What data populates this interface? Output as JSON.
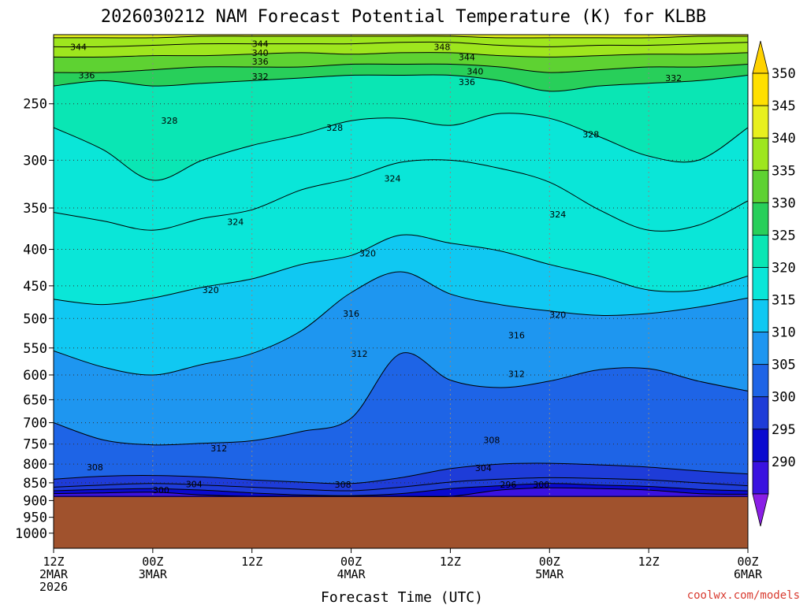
{
  "chart_data": {
    "type": "heatmap",
    "title": "2026030212 NAM Forecast Potential Temperature (K) for KLBB",
    "xlabel": "Forecast Time (UTC)",
    "credit": "coolwx.com/models",
    "y_axis": {
      "scale": "log-pressure",
      "reversed": true,
      "range": [
        200,
        1050
      ],
      "ticks": [
        250,
        300,
        350,
        400,
        450,
        500,
        550,
        600,
        650,
        700,
        750,
        800,
        850,
        900,
        950,
        1000
      ],
      "tick_labels": [
        "250",
        "300",
        "350",
        "400",
        "450",
        "500",
        "550",
        "600",
        "650",
        "700",
        "750",
        "800",
        "850",
        "900",
        "950",
        "1000"
      ]
    },
    "x_axis": {
      "range_hours": [
        0,
        84
      ],
      "ticks_hours": [
        0,
        12,
        24,
        36,
        48,
        60,
        72,
        84
      ],
      "tick_labels": [
        [
          "12Z",
          "2MAR",
          "2026"
        ],
        [
          "00Z",
          "3MAR"
        ],
        [
          "12Z"
        ],
        [
          "00Z",
          "4MAR"
        ],
        [
          "12Z"
        ],
        [
          "00Z",
          "5MAR"
        ],
        [
          "12Z"
        ],
        [
          "00Z",
          "6MAR"
        ]
      ]
    },
    "colorbar": {
      "levels": [
        290,
        295,
        300,
        305,
        310,
        315,
        320,
        325,
        330,
        335,
        340,
        345,
        350
      ],
      "labels": [
        "290",
        "295",
        "300",
        "305",
        "310",
        "315",
        "320",
        "325",
        "330",
        "335",
        "340",
        "345",
        "350"
      ],
      "colors": [
        "#8a1ee6",
        "#3a12e0",
        "#0a0ad0",
        "#1e3cd8",
        "#1e64e6",
        "#1e96f0",
        "#10c8f2",
        "#0ae6d8",
        "#0ae6b4",
        "#28cf5a",
        "#5ed232",
        "#9ee61e",
        "#e8f01e",
        "#ffe000",
        "#ffd200"
      ]
    },
    "grid": true,
    "terrain_pressure": 890,
    "terrain_color": "#a0522d",
    "isentropes": [
      {
        "theta": 290,
        "p": [
          888,
          888,
          888,
          888,
          888,
          888,
          888,
          888,
          888,
          888,
          888,
          888,
          888,
          888,
          888
        ]
      },
      {
        "theta": 296,
        "p": [
          880,
          878,
          876,
          884,
          888,
          888,
          888,
          888,
          888,
          870,
          864,
          866,
          870,
          880,
          882
        ]
      },
      {
        "theta": 300,
        "p": [
          872,
          868,
          866,
          870,
          878,
          884,
          886,
          880,
          866,
          858,
          852,
          856,
          860,
          868,
          872
        ]
      },
      {
        "theta": 304,
        "p": [
          862,
          856,
          852,
          856,
          862,
          868,
          872,
          862,
          848,
          840,
          836,
          838,
          842,
          850,
          858
        ]
      },
      {
        "theta": 308,
        "p": [
          840,
          832,
          830,
          834,
          842,
          848,
          852,
          836,
          812,
          800,
          798,
          802,
          808,
          818,
          826
        ]
      },
      {
        "theta": 312,
        "p": [
          700,
          740,
          752,
          748,
          742,
          720,
          690,
          560,
          610,
          625,
          612,
          590,
          588,
          612,
          632
        ]
      },
      {
        "theta": 316,
        "p": [
          555,
          585,
          600,
          580,
          560,
          520,
          460,
          430,
          462,
          478,
          488,
          495,
          492,
          482,
          468
        ]
      },
      {
        "theta": 320,
        "p": [
          470,
          478,
          468,
          452,
          440,
          420,
          408,
          382,
          392,
          402,
          420,
          436,
          456,
          456,
          436
        ]
      },
      {
        "theta": 324,
        "p": [
          355,
          365,
          376,
          362,
          352,
          330,
          318,
          302,
          300,
          308,
          322,
          352,
          376,
          370,
          342
        ]
      },
      {
        "theta": 328,
        "p": [
          270,
          290,
          320,
          300,
          286,
          276,
          264,
          262,
          268,
          258,
          262,
          278,
          296,
          300,
          270
        ]
      },
      {
        "theta": 332,
        "p": [
          236,
          232,
          236,
          234,
          232,
          230,
          228,
          228,
          228,
          232,
          240,
          236,
          234,
          232,
          228
        ]
      },
      {
        "theta": 336,
        "p": [
          226,
          226,
          224,
          222,
          222,
          222,
          220,
          220,
          220,
          222,
          226,
          224,
          222,
          222,
          220
        ]
      },
      {
        "theta": 340,
        "p": [
          215,
          215,
          214,
          214,
          213,
          212,
          213,
          212,
          212,
          214,
          215,
          214,
          213,
          213,
          212
        ]
      },
      {
        "theta": 344,
        "p": [
          208,
          208,
          207,
          206,
          206,
          206,
          206,
          205,
          205,
          207,
          208,
          207,
          207,
          206,
          205
        ]
      },
      {
        "theta": 348,
        "p": [
          202,
          202,
          202,
          201,
          201,
          201,
          201,
          201,
          201,
          202,
          202,
          202,
          202,
          201,
          201
        ]
      }
    ],
    "contour_labels": [
      {
        "text": "344",
        "hour": 3,
        "p": 208
      },
      {
        "text": "344",
        "hour": 25,
        "p": 206
      },
      {
        "text": "340",
        "hour": 25,
        "p": 212
      },
      {
        "text": "336",
        "hour": 25,
        "p": 218
      },
      {
        "text": "332",
        "hour": 25,
        "p": 229
      },
      {
        "text": "348",
        "hour": 47,
        "p": 208
      },
      {
        "text": "344",
        "hour": 50,
        "p": 215
      },
      {
        "text": "340",
        "hour": 51,
        "p": 225
      },
      {
        "text": "336",
        "hour": 50,
        "p": 233
      },
      {
        "text": "332",
        "hour": 75,
        "p": 230
      },
      {
        "text": "336",
        "hour": 4,
        "p": 228
      },
      {
        "text": "328",
        "hour": 14,
        "p": 264
      },
      {
        "text": "328",
        "hour": 34,
        "p": 270
      },
      {
        "text": "328",
        "hour": 65,
        "p": 276
      },
      {
        "text": "324",
        "hour": 22,
        "p": 366
      },
      {
        "text": "324",
        "hour": 41,
        "p": 318
      },
      {
        "text": "324",
        "hour": 61,
        "p": 357
      },
      {
        "text": "320",
        "hour": 19,
        "p": 456
      },
      {
        "text": "320",
        "hour": 38,
        "p": 405
      },
      {
        "text": "320",
        "hour": 61,
        "p": 494
      },
      {
        "text": "316",
        "hour": 36,
        "p": 492
      },
      {
        "text": "316",
        "hour": 56,
        "p": 528
      },
      {
        "text": "312",
        "hour": 37,
        "p": 560
      },
      {
        "text": "312",
        "hour": 56,
        "p": 598
      },
      {
        "text": "312",
        "hour": 20,
        "p": 760
      },
      {
        "text": "308",
        "hour": 5,
        "p": 808
      },
      {
        "text": "308",
        "hour": 53,
        "p": 740
      },
      {
        "text": "308",
        "hour": 35,
        "p": 855
      },
      {
        "text": "304",
        "hour": 17,
        "p": 853
      },
      {
        "text": "304",
        "hour": 52,
        "p": 810
      },
      {
        "text": "300",
        "hour": 13,
        "p": 870
      },
      {
        "text": "300",
        "hour": 59,
        "p": 855
      },
      {
        "text": "296",
        "hour": 55,
        "p": 855
      }
    ]
  }
}
